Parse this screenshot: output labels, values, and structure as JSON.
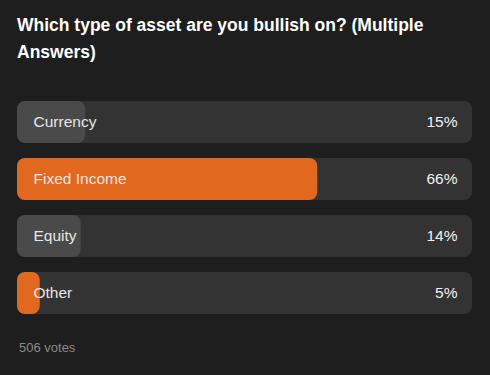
{
  "chart_data": {
    "type": "bar",
    "orientation": "horizontal",
    "title": "Which type of asset are you bullish on? (Multiple Answers)",
    "caption": "506 votes",
    "categories": [
      "Currency",
      "Fixed Income",
      "Equity",
      "Other"
    ],
    "values": [
      15,
      66,
      14,
      5
    ],
    "value_labels": [
      "15%",
      "66%",
      "14%",
      "5%"
    ],
    "colors": [
      "#4a4a4a",
      "#e0691f",
      "#4a4a4a",
      "#e0691f"
    ],
    "xlim": [
      0,
      100
    ],
    "data_labels": true,
    "tick_labels": false,
    "grid": false
  }
}
